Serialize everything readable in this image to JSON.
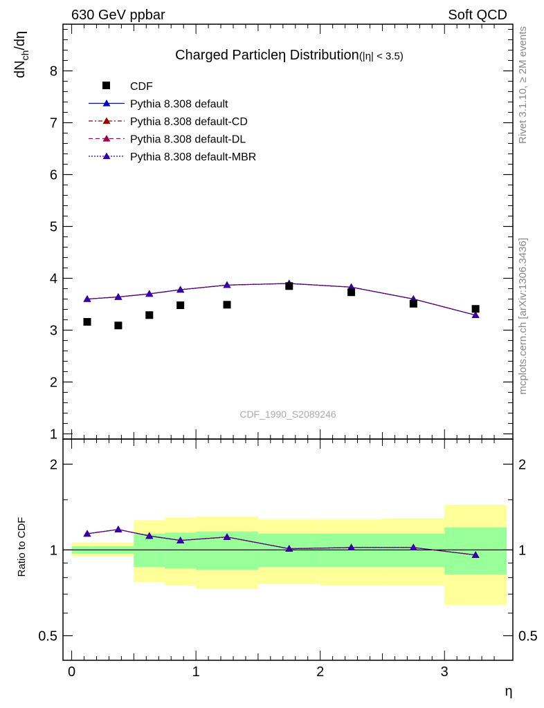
{
  "header": {
    "left": "630 GeV ppbar",
    "right": "Soft QCD"
  },
  "side_labels": {
    "rivet": "Rivet 3.1.10, ≥ 2M events",
    "mcplots": "mcplots.cern.ch [arXiv:1306.3436]"
  },
  "watermark": "CDF_1990_S2089246",
  "legend": {
    "entries": [
      "CDF",
      "Pythia 8.308 default",
      "Pythia 8.308 default-CD",
      "Pythia 8.308 default-DL",
      "Pythia 8.308 default-MBR"
    ]
  },
  "colors": {
    "data": "#000000",
    "default": "#0000cc",
    "default_cd": "#990000",
    "default_dl": "#a0004a",
    "default_mbr": "#3300aa",
    "band_inner": "#99ff99",
    "band_outer": "#ffff99"
  },
  "chart_data": [
    {
      "type": "scatter",
      "title": "Charged Particle",
      "title_symbol": "η",
      "title_rest": " Distribution",
      "title_suffix": "(|η| < 3.5)",
      "ylabel": "dN",
      "ylabel_sub": "ch",
      "ylabel_rest": "/dη",
      "ylim": [
        0.9,
        8.9
      ],
      "xlim": [
        -0.07,
        3.55
      ],
      "y_ticks": [
        "1",
        "2",
        "3",
        "4",
        "5",
        "6",
        "7",
        "8"
      ],
      "y_tick_values": [
        1,
        2,
        3,
        4,
        5,
        6,
        7,
        8
      ],
      "x": [
        0.125,
        0.375,
        0.625,
        0.875,
        1.25,
        1.75,
        2.25,
        2.75,
        3.25
      ],
      "data": [
        3.16,
        3.09,
        3.29,
        3.48,
        3.49,
        3.85,
        3.73,
        3.51,
        3.41
      ],
      "mc": [
        3.6,
        3.64,
        3.7,
        3.78,
        3.87,
        3.9,
        3.83,
        3.6,
        3.29
      ],
      "series_names": [
        "CDF",
        "Pythia 8.308 default",
        "Pythia 8.308 default-CD",
        "Pythia 8.308 default-DL",
        "Pythia 8.308 default-MBR"
      ]
    },
    {
      "type": "line",
      "ylabel": "Ratio to CDF",
      "xlabel": "η",
      "ylim_log": [
        0.41,
        2.45
      ],
      "y_ticks": [
        "0.5",
        "1",
        "2"
      ],
      "y_tick_values": [
        0.5,
        1,
        2
      ],
      "x_ticks": [
        "0",
        "1",
        "2",
        "3"
      ],
      "x_tick_values": [
        0,
        1,
        2,
        3
      ],
      "x": [
        0.125,
        0.375,
        0.625,
        0.875,
        1.25,
        1.75,
        2.25,
        2.75,
        3.25
      ],
      "ratio": [
        1.14,
        1.18,
        1.12,
        1.08,
        1.11,
        1.01,
        1.02,
        1.02,
        0.96
      ],
      "bands": [
        {
          "x0": 0.0,
          "x1": 0.5,
          "inner": [
            0.97,
            1.03
          ],
          "outer": [
            0.95,
            1.06
          ]
        },
        {
          "x0": 0.5,
          "x1": 0.75,
          "inner": [
            0.87,
            1.14
          ],
          "outer": [
            0.77,
            1.27
          ]
        },
        {
          "x0": 0.75,
          "x1": 1.0,
          "inner": [
            0.86,
            1.15
          ],
          "outer": [
            0.75,
            1.3
          ]
        },
        {
          "x0": 1.0,
          "x1": 1.5,
          "inner": [
            0.85,
            1.16
          ],
          "outer": [
            0.73,
            1.31
          ]
        },
        {
          "x0": 1.5,
          "x1": 2.0,
          "inner": [
            0.87,
            1.14
          ],
          "outer": [
            0.76,
            1.28
          ]
        },
        {
          "x0": 2.0,
          "x1": 2.5,
          "inner": [
            0.87,
            1.14
          ],
          "outer": [
            0.75,
            1.28
          ]
        },
        {
          "x0": 2.5,
          "x1": 3.0,
          "inner": [
            0.87,
            1.14
          ],
          "outer": [
            0.75,
            1.29
          ]
        },
        {
          "x0": 3.0,
          "x1": 3.5,
          "inner": [
            0.82,
            1.2
          ],
          "outer": [
            0.64,
            1.44
          ]
        }
      ]
    }
  ]
}
